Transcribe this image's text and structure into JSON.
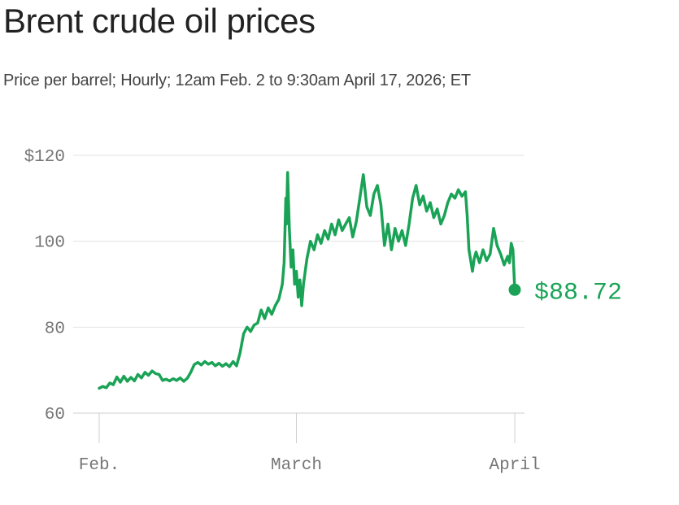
{
  "chart_data": {
    "type": "line",
    "title": "Brent crude oil prices",
    "subtitle": "Price per barrel; Hourly; 12am Feb. 2 to 9:30am April 17, 2026; ET",
    "xlabel": "",
    "ylabel": "",
    "ylim": [
      60,
      120
    ],
    "yticks": [
      {
        "value": 120,
        "label": "$120"
      },
      {
        "value": 100,
        "label": "100"
      },
      {
        "value": 80,
        "label": "80"
      },
      {
        "value": 60,
        "label": "60"
      }
    ],
    "xlim": [
      "2026-02-01",
      "2026-04-01"
    ],
    "xticks": [
      {
        "value": "2026-02-01",
        "label": "Feb."
      },
      {
        "value": "2026-03-01",
        "label": "March"
      },
      {
        "value": "2026-04-01",
        "label": "April"
      }
    ],
    "grid": true,
    "series": [
      {
        "color": "#1aa356",
        "points": [
          [
            "2026-02-01",
            65.8
          ],
          [
            "2026-02-01T12:00",
            66.2
          ],
          [
            "2026-02-02",
            65.9
          ],
          [
            "2026-02-02T12:00",
            67.0
          ],
          [
            "2026-02-03",
            66.6
          ],
          [
            "2026-02-03T12:00",
            68.4
          ],
          [
            "2026-02-04",
            67.2
          ],
          [
            "2026-02-04T12:00",
            68.6
          ],
          [
            "2026-02-05",
            67.4
          ],
          [
            "2026-02-05T12:00",
            68.3
          ],
          [
            "2026-02-06",
            67.5
          ],
          [
            "2026-02-06T12:00",
            69.0
          ],
          [
            "2026-02-07",
            68.2
          ],
          [
            "2026-02-07T12:00",
            69.5
          ],
          [
            "2026-02-08",
            68.8
          ],
          [
            "2026-02-08T12:00",
            69.8
          ],
          [
            "2026-02-09",
            69.2
          ],
          [
            "2026-02-09T12:00",
            69.0
          ],
          [
            "2026-02-10",
            67.6
          ],
          [
            "2026-02-10T12:00",
            67.9
          ],
          [
            "2026-02-11",
            67.5
          ],
          [
            "2026-02-11T12:00",
            68.0
          ],
          [
            "2026-02-12",
            67.6
          ],
          [
            "2026-02-12T12:00",
            68.2
          ],
          [
            "2026-02-13",
            67.4
          ],
          [
            "2026-02-13T12:00",
            68.1
          ],
          [
            "2026-02-14",
            69.5
          ],
          [
            "2026-02-14T12:00",
            71.3
          ],
          [
            "2026-02-15",
            71.8
          ],
          [
            "2026-02-15T12:00",
            71.2
          ],
          [
            "2026-02-16",
            72.0
          ],
          [
            "2026-02-16T12:00",
            71.4
          ],
          [
            "2026-02-17",
            71.8
          ],
          [
            "2026-02-17T12:00",
            71.0
          ],
          [
            "2026-02-18",
            71.6
          ],
          [
            "2026-02-18T12:00",
            70.9
          ],
          [
            "2026-02-19",
            71.5
          ],
          [
            "2026-02-19T12:00",
            70.8
          ],
          [
            "2026-02-20",
            72.0
          ],
          [
            "2026-02-20T12:00",
            71.0
          ],
          [
            "2026-02-21",
            74.0
          ],
          [
            "2026-02-21T12:00",
            78.5
          ],
          [
            "2026-02-22",
            80.0
          ],
          [
            "2026-02-22T12:00",
            79.0
          ],
          [
            "2026-02-23",
            80.5
          ],
          [
            "2026-02-23T12:00",
            81.0
          ],
          [
            "2026-02-24",
            84.0
          ],
          [
            "2026-02-24T12:00",
            82.0
          ],
          [
            "2026-02-25",
            84.5
          ],
          [
            "2026-02-25T12:00",
            83.0
          ],
          [
            "2026-02-26",
            85.0
          ],
          [
            "2026-02-26T12:00",
            86.5
          ],
          [
            "2026-02-27",
            90.0
          ],
          [
            "2026-02-27T06:00",
            95.0
          ],
          [
            "2026-02-27T12:00",
            110.0
          ],
          [
            "2026-02-27T14:00",
            104.0
          ],
          [
            "2026-02-27T18:00",
            116.0
          ],
          [
            "2026-02-28",
            103.0
          ],
          [
            "2026-02-28T06:00",
            94.0
          ],
          [
            "2026-02-28T12:00",
            98.0
          ],
          [
            "2026-02-28T18:00",
            90.0
          ],
          [
            "2026-03-01",
            93.0
          ],
          [
            "2026-03-01T06:00",
            87.0
          ],
          [
            "2026-03-01T12:00",
            91.0
          ],
          [
            "2026-03-01T18:00",
            85.0
          ],
          [
            "2026-03-02",
            90.0
          ],
          [
            "2026-03-02T12:00",
            96.0
          ],
          [
            "2026-03-03",
            100.0
          ],
          [
            "2026-03-03T12:00",
            98.0
          ],
          [
            "2026-03-04",
            101.5
          ],
          [
            "2026-03-04T12:00",
            99.5
          ],
          [
            "2026-03-05",
            102.5
          ],
          [
            "2026-03-05T12:00",
            100.5
          ],
          [
            "2026-03-06",
            104.0
          ],
          [
            "2026-03-06T12:00",
            101.5
          ],
          [
            "2026-03-07",
            105.0
          ],
          [
            "2026-03-07T12:00",
            102.5
          ],
          [
            "2026-03-08",
            104.0
          ],
          [
            "2026-03-08T12:00",
            105.5
          ],
          [
            "2026-03-09",
            101.0
          ],
          [
            "2026-03-09T12:00",
            104.5
          ],
          [
            "2026-03-10",
            110.0
          ],
          [
            "2026-03-10T12:00",
            115.5
          ],
          [
            "2026-03-11",
            108.0
          ],
          [
            "2026-03-11T12:00",
            106.0
          ],
          [
            "2026-03-12",
            111.0
          ],
          [
            "2026-03-12T12:00",
            113.0
          ],
          [
            "2026-03-13",
            108.5
          ],
          [
            "2026-03-13T12:00",
            99.0
          ],
          [
            "2026-03-14",
            104.0
          ],
          [
            "2026-03-14T12:00",
            98.0
          ],
          [
            "2026-03-15",
            103.0
          ],
          [
            "2026-03-15T12:00",
            100.0
          ],
          [
            "2026-03-16",
            102.5
          ],
          [
            "2026-03-16T12:00",
            99.0
          ],
          [
            "2026-03-17",
            104.0
          ],
          [
            "2026-03-17T12:00",
            110.0
          ],
          [
            "2026-03-18",
            113.0
          ],
          [
            "2026-03-18T12:00",
            108.5
          ],
          [
            "2026-03-19",
            110.5
          ],
          [
            "2026-03-19T12:00",
            107.0
          ],
          [
            "2026-03-20",
            109.0
          ],
          [
            "2026-03-20T12:00",
            105.5
          ],
          [
            "2026-03-21",
            107.5
          ],
          [
            "2026-03-21T12:00",
            104.0
          ],
          [
            "2026-03-22",
            106.0
          ],
          [
            "2026-03-22T12:00",
            109.0
          ],
          [
            "2026-03-23",
            111.0
          ],
          [
            "2026-03-23T12:00",
            110.0
          ],
          [
            "2026-03-24",
            112.0
          ],
          [
            "2026-03-24T12:00",
            110.5
          ],
          [
            "2026-03-25",
            111.5
          ],
          [
            "2026-03-25T06:00",
            106.0
          ],
          [
            "2026-03-25T12:00",
            98.0
          ],
          [
            "2026-03-26",
            93.0
          ],
          [
            "2026-03-26T06:00",
            96.0
          ],
          [
            "2026-03-26T12:00",
            97.5
          ],
          [
            "2026-03-27",
            95.0
          ],
          [
            "2026-03-27T12:00",
            98.0
          ],
          [
            "2026-03-28",
            95.5
          ],
          [
            "2026-03-28T12:00",
            97.0
          ],
          [
            "2026-03-29",
            103.0
          ],
          [
            "2026-03-29T12:00",
            99.0
          ],
          [
            "2026-03-30",
            97.0
          ],
          [
            "2026-03-30T12:00",
            94.5
          ],
          [
            "2026-03-31",
            96.5
          ],
          [
            "2026-03-31T06:00",
            95.0
          ],
          [
            "2026-03-31T12:00",
            99.5
          ],
          [
            "2026-03-31T18:00",
            98.0
          ],
          [
            "2026-04-01",
            88.72
          ]
        ],
        "end_value": 88.72,
        "end_label": "$88.72"
      }
    ]
  }
}
